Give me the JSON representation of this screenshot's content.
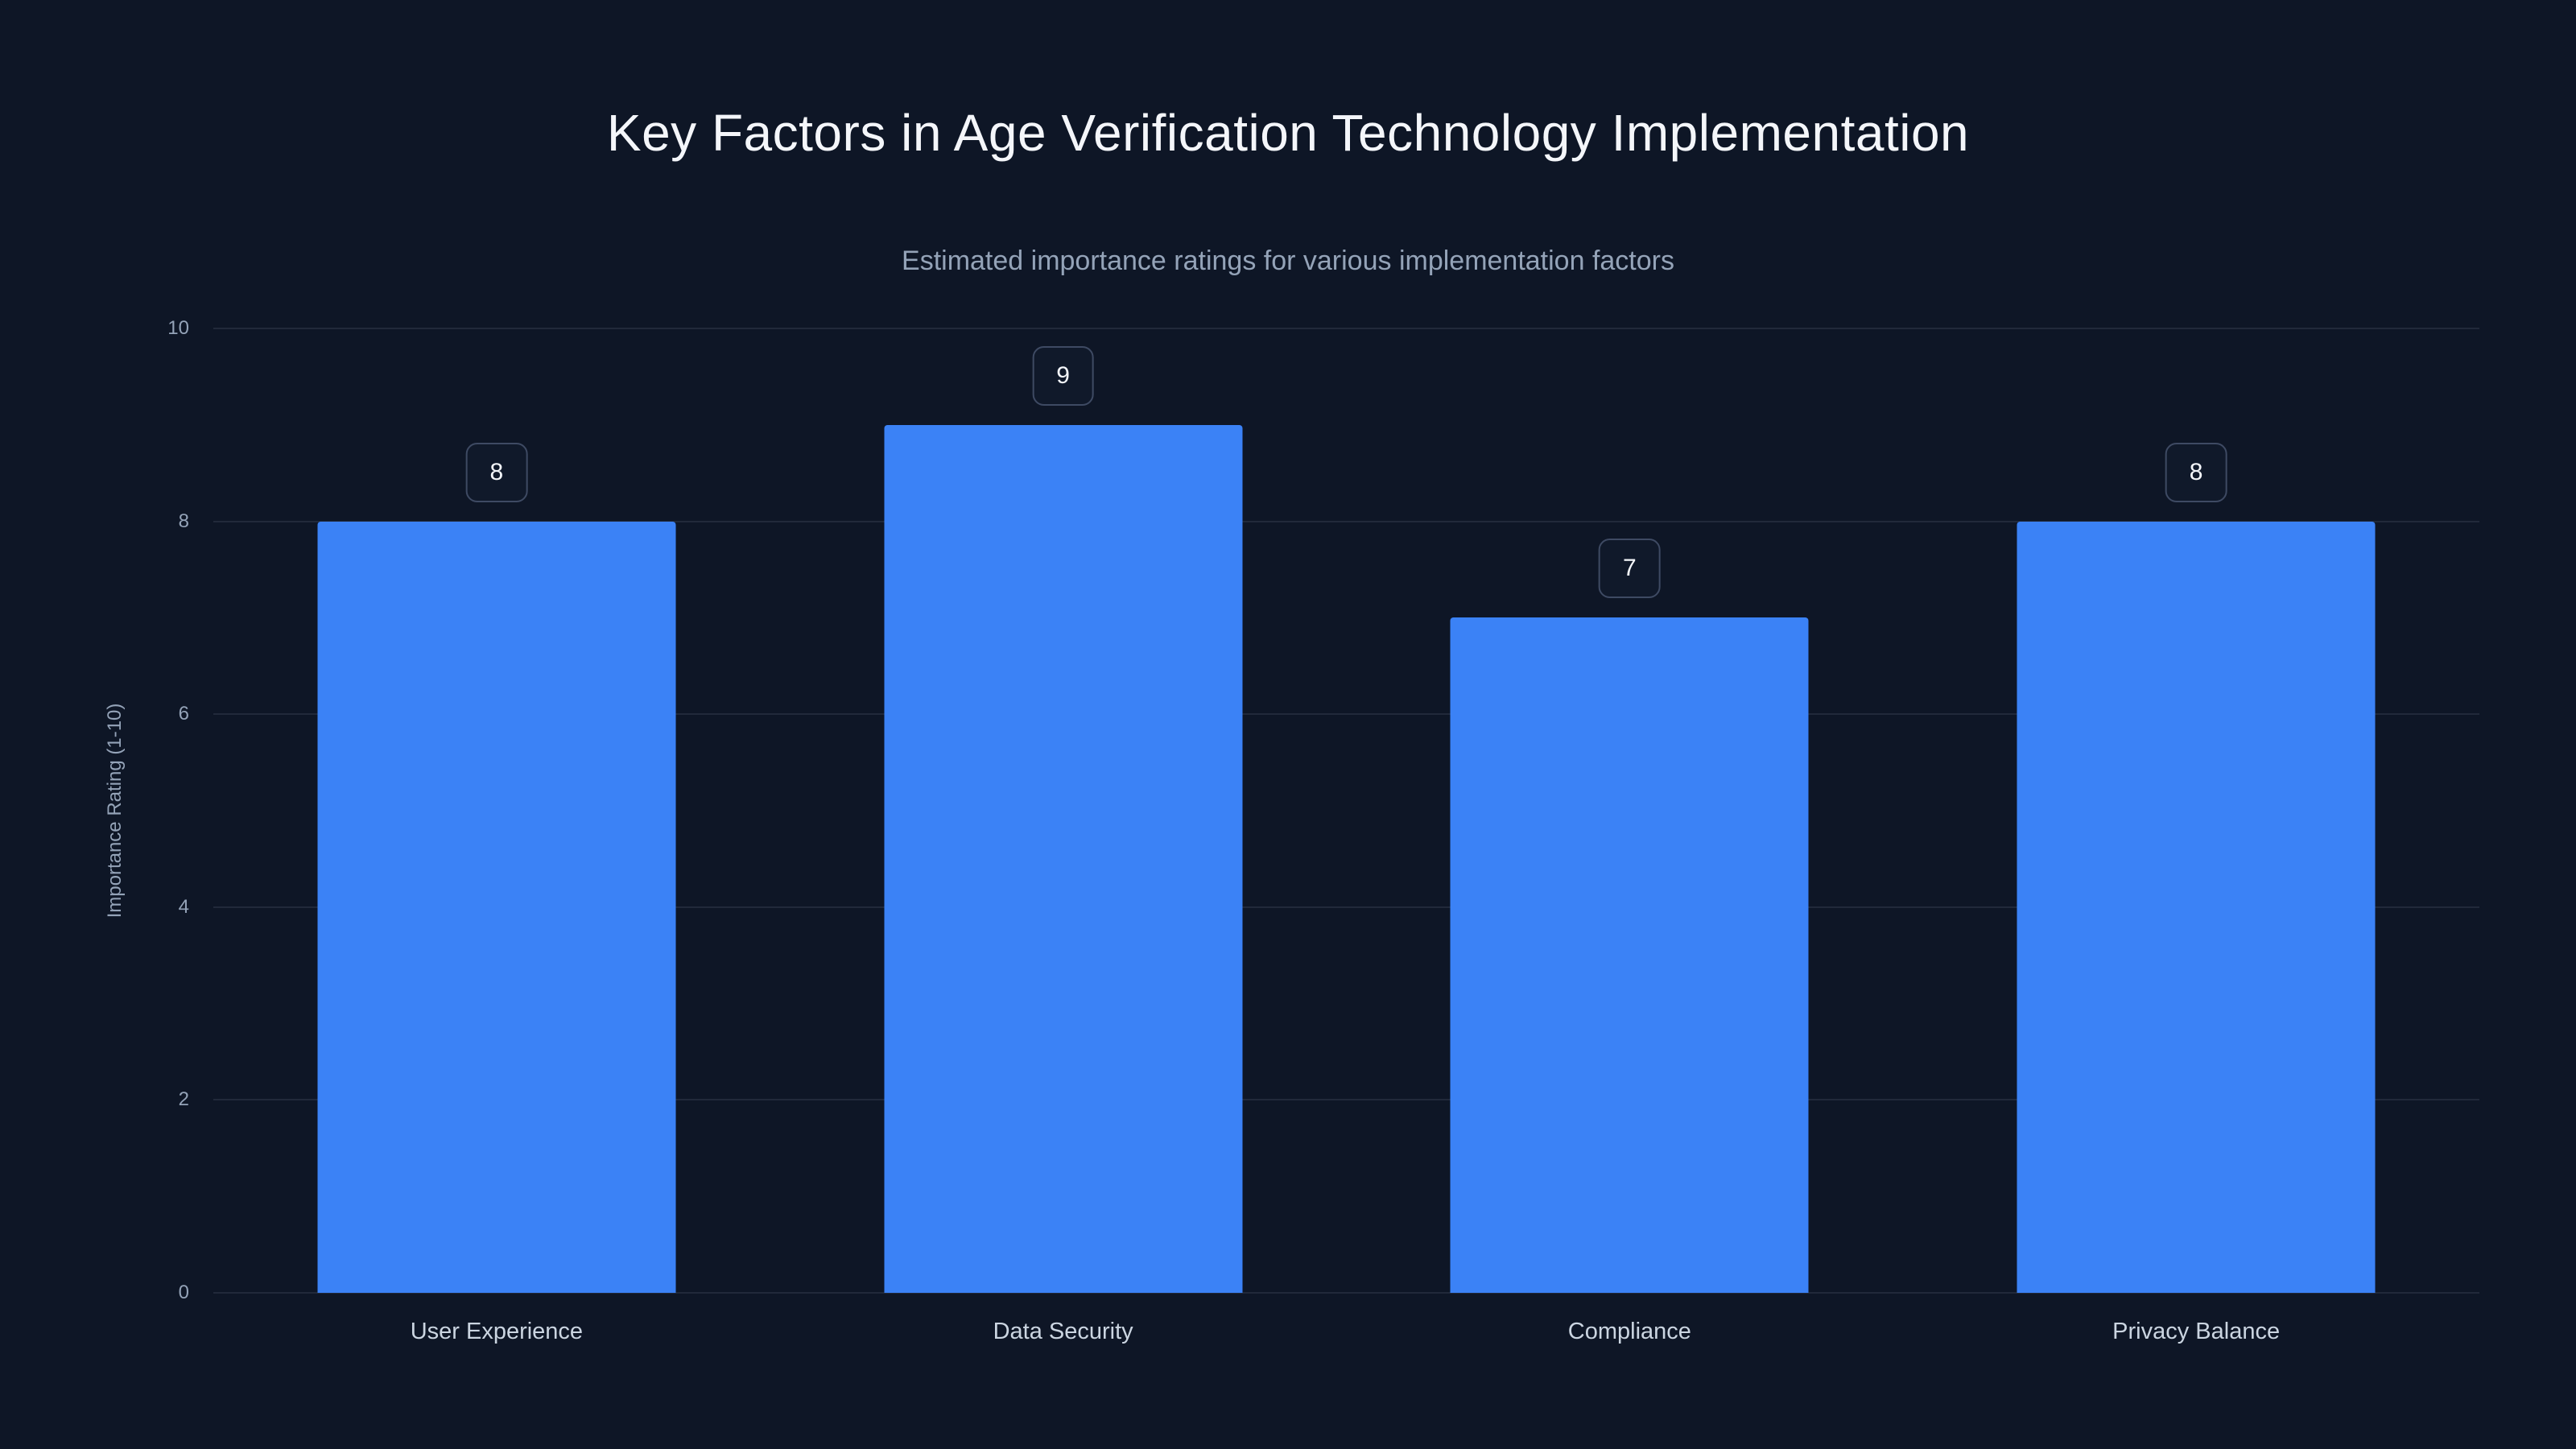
{
  "page": {
    "background_color": "#0e1626"
  },
  "chart_data": {
    "type": "bar",
    "title": "Key Factors in Age Verification Technology Implementation",
    "subtitle": "Estimated importance ratings for various implementation factors",
    "categories": [
      "User Experience",
      "Data Security",
      "Compliance",
      "Privacy Balance"
    ],
    "values": [
      8,
      9,
      7,
      8
    ],
    "value_labels": [
      "8",
      "9",
      "7",
      "8"
    ],
    "xlabel": "",
    "ylabel": "Importance Rating (1-10)",
    "ylim": [
      0,
      10
    ],
    "yticks": [
      0,
      2,
      4,
      6,
      8,
      10
    ],
    "grid": true,
    "legend_position": "none",
    "bar_color": "#3b82f6",
    "title_color": "#f4f6fa",
    "subtitle_color": "#94a3b8",
    "axis_text_color": "#94a3b8",
    "category_label_color": "#cbd5e1",
    "gridline_color": "rgba(148,163,184,0.14)"
  }
}
